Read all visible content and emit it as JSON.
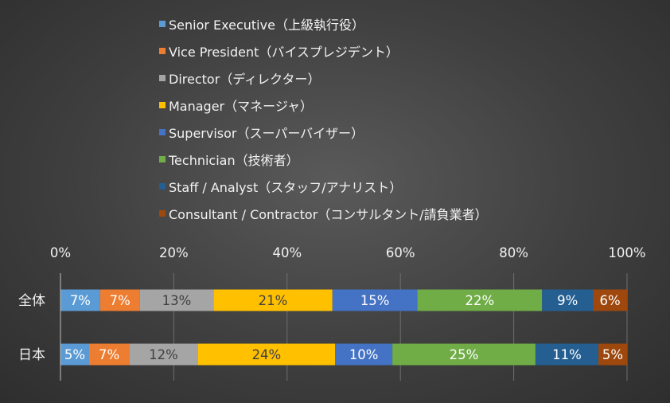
{
  "chart_data": {
    "type": "bar",
    "orientation": "horizontal",
    "stacked": true,
    "percent": true,
    "title": "",
    "categories": [
      "全体",
      "日本"
    ],
    "xlim": [
      0,
      100
    ],
    "xticks": [
      "0%",
      "20%",
      "40%",
      "60%",
      "80%",
      "100%"
    ],
    "legend_position": "top",
    "grid": true,
    "series": [
      {
        "name": "Senior Executive（上級執行役）",
        "color": "#5b9bd5",
        "values": [
          7,
          5
        ],
        "labels": [
          "7%",
          "5%"
        ]
      },
      {
        "name": "Vice President（バイスプレジデント）",
        "color": "#ed7d31",
        "values": [
          7,
          7
        ],
        "labels": [
          "7%",
          "7%"
        ]
      },
      {
        "name": "Director（ディレクター）",
        "color": "#a5a5a5",
        "values": [
          13,
          12
        ],
        "labels": [
          "13%",
          "12%"
        ]
      },
      {
        "name": "Manager（マネージャ）",
        "color": "#ffc000",
        "values": [
          21,
          24
        ],
        "labels": [
          "21%",
          "24%"
        ]
      },
      {
        "name": "Supervisor（スーパーバイザー）",
        "color": "#4472c4",
        "values": [
          15,
          10
        ],
        "labels": [
          "15%",
          "10%"
        ]
      },
      {
        "name": "Technician（技術者）",
        "color": "#70ad47",
        "values": [
          22,
          25
        ],
        "labels": [
          "22%",
          "25%"
        ]
      },
      {
        "name": "Staff / Analyst（スタッフ/アナリスト）",
        "color": "#255e91",
        "values": [
          9,
          11
        ],
        "labels": [
          "9%",
          "11%"
        ]
      },
      {
        "name": "Consultant / Contractor（コンサルタント/請負業者）",
        "color": "#9e480e",
        "values": [
          6,
          5
        ],
        "labels": [
          "6%",
          "5%"
        ]
      }
    ]
  }
}
